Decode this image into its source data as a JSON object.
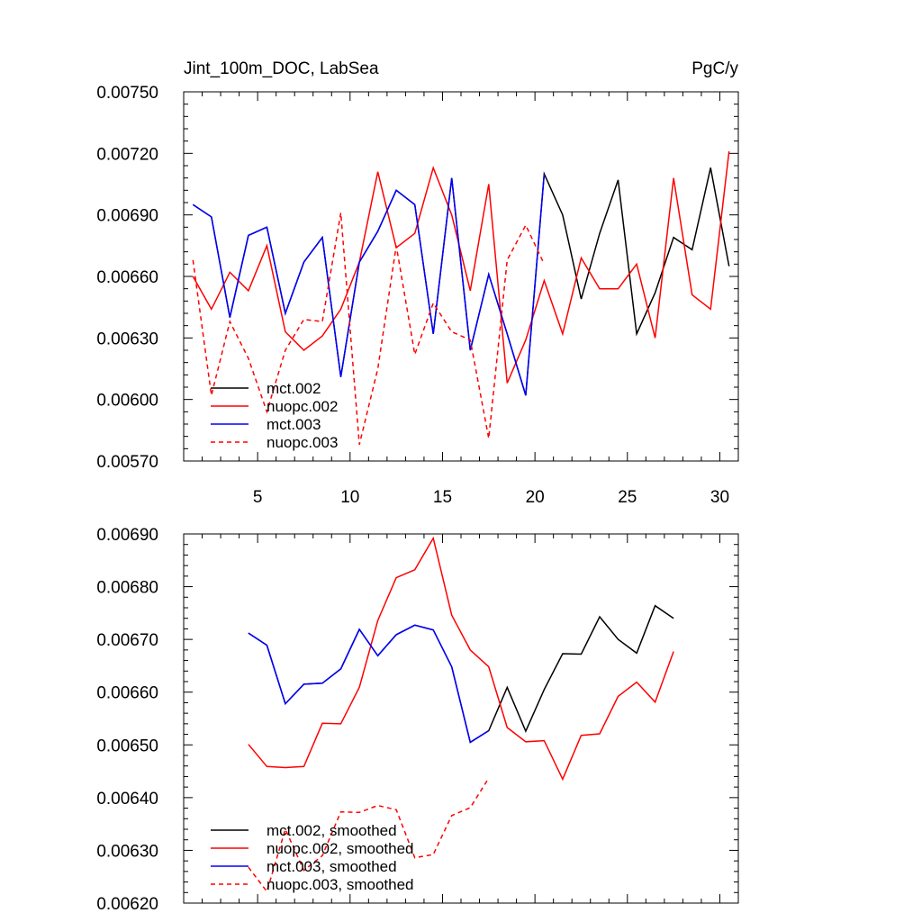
{
  "figure": {
    "title_left": "Jint_100m_DOC, LabSea",
    "title_right": "PgC/y"
  },
  "chart_data": [
    {
      "type": "line",
      "title": "Jint_100m_DOC, LabSea",
      "units": "PgC/y",
      "xlabel": "",
      "ylabel": "",
      "xlim": [
        1,
        31
      ],
      "ylim": [
        0.0057,
        0.0075
      ],
      "x_ticks": [
        5,
        10,
        15,
        20,
        25,
        30
      ],
      "x_tick_labels": [
        "5",
        "10",
        "15",
        "20",
        "25",
        "30"
      ],
      "y_ticks": [
        0.0057,
        0.006,
        0.0063,
        0.0066,
        0.0069,
        0.0072,
        0.0075
      ],
      "y_tick_labels": [
        "0.00570",
        "0.00600",
        "0.00630",
        "0.00660",
        "0.00690",
        "0.00720",
        "0.00750"
      ],
      "legend_position": "bottom-left",
      "series": [
        {
          "name": "mct.002",
          "color": "#000000",
          "dash": "solid",
          "x": [
            1.5,
            2.5,
            3.5,
            4.5,
            5.5,
            6.5,
            7.5,
            8.5,
            9.5,
            10.5,
            11.5,
            12.5,
            13.5,
            14.5,
            15.5,
            16.5,
            17.5,
            18.5,
            19.5,
            20.5,
            21.5,
            22.5,
            23.5,
            24.5,
            25.5,
            26.5,
            27.5,
            28.5,
            29.5,
            30.5
          ],
          "values": [
            0.00695,
            0.00689,
            0.0064,
            0.0068,
            0.00684,
            0.00642,
            0.00667,
            0.00679,
            0.00611,
            0.00667,
            0.00682,
            0.00702,
            0.00695,
            0.00632,
            0.00708,
            0.00624,
            0.00661,
            0.00632,
            0.00602,
            0.0071,
            0.0069,
            0.00649,
            0.00681,
            0.00707,
            0.00632,
            0.00652,
            0.00679,
            0.00673,
            0.00713,
            0.00665
          ]
        },
        {
          "name": "nuopc.002",
          "color": "#ff0000",
          "dash": "solid",
          "x": [
            1.5,
            2.5,
            3.5,
            4.5,
            5.5,
            6.5,
            7.5,
            8.5,
            9.5,
            10.5,
            11.5,
            12.5,
            13.5,
            14.5,
            15.5,
            16.5,
            17.5,
            18.5,
            19.5,
            20.5,
            21.5,
            22.5,
            23.5,
            24.5,
            25.5,
            26.5,
            27.5,
            28.5,
            29.5,
            30.5
          ],
          "values": [
            0.0066,
            0.00644,
            0.00662,
            0.00653,
            0.00675,
            0.00633,
            0.00624,
            0.00631,
            0.00644,
            0.00667,
            0.00711,
            0.00674,
            0.00681,
            0.00713,
            0.0069,
            0.00653,
            0.00705,
            0.00608,
            0.00629,
            0.00658,
            0.00632,
            0.00669,
            0.00654,
            0.00654,
            0.00666,
            0.0063,
            0.00708,
            0.00651,
            0.00644,
            0.00721
          ]
        },
        {
          "name": "mct.003",
          "color": "#0000ff",
          "dash": "solid",
          "x": [
            1.5,
            2.5,
            3.5,
            4.5,
            5.5,
            6.5,
            7.5,
            8.5,
            9.5,
            10.5,
            11.5,
            12.5,
            13.5,
            14.5,
            15.5,
            16.5,
            17.5,
            18.5,
            19.5,
            20.5
          ],
          "values": [
            0.00695,
            0.00689,
            0.0064,
            0.0068,
            0.00684,
            0.00642,
            0.00667,
            0.00679,
            0.00611,
            0.00667,
            0.00682,
            0.00702,
            0.00695,
            0.00632,
            0.00708,
            0.00624,
            0.00661,
            0.00632,
            0.00602,
            0.0071
          ]
        },
        {
          "name": "nuopc.003",
          "color": "#ff0000",
          "dash": "dashed",
          "x": [
            1.5,
            2.5,
            3.5,
            4.5,
            5.5,
            6.5,
            7.5,
            8.5,
            9.5,
            10.5,
            11.5,
            12.5,
            13.5,
            14.5,
            15.5,
            16.5,
            17.5,
            18.5,
            19.5,
            20.5
          ],
          "values": [
            0.00668,
            0.00602,
            0.00638,
            0.0062,
            0.00594,
            0.00624,
            0.00639,
            0.00638,
            0.00691,
            0.00578,
            0.00615,
            0.00675,
            0.00622,
            0.00647,
            0.00633,
            0.00629,
            0.00581,
            0.00668,
            0.00685,
            0.00666
          ]
        }
      ]
    },
    {
      "type": "line",
      "title": "",
      "xlabel": "",
      "ylabel": "",
      "xlim": [
        1,
        31
      ],
      "ylim": [
        0.0062,
        0.0069
      ],
      "x_ticks": [
        5,
        10,
        15,
        20,
        25,
        30
      ],
      "x_tick_labels": [],
      "y_ticks": [
        0.0062,
        0.0063,
        0.0064,
        0.0065,
        0.0066,
        0.0067,
        0.0068,
        0.0069
      ],
      "y_tick_labels": [
        "0.00620",
        "0.00630",
        "0.00640",
        "0.00650",
        "0.00660",
        "0.00670",
        "0.00680",
        "0.00690"
      ],
      "legend_position": "bottom-left",
      "series": [
        {
          "name": "mct.002, smoothed",
          "color": "#000000",
          "dash": "solid",
          "x": [
            4.5,
            5.5,
            6.5,
            7.5,
            8.5,
            9.5,
            10.5,
            11.5,
            12.5,
            13.5,
            14.5,
            15.5,
            16.5,
            17.5,
            18.5,
            19.5,
            20.5,
            21.5,
            22.5,
            23.5,
            24.5,
            25.5,
            26.5,
            27.5
          ],
          "values": [
            0.006712,
            0.006689,
            0.006578,
            0.006615,
            0.006617,
            0.006644,
            0.006719,
            0.006669,
            0.006709,
            0.006727,
            0.006718,
            0.006648,
            0.006505,
            0.006527,
            0.006609,
            0.006526,
            0.006605,
            0.006673,
            0.006672,
            0.006743,
            0.0067,
            0.006674,
            0.006764,
            0.00674
          ]
        },
        {
          "name": "nuopc.002, smoothed",
          "color": "#ff0000",
          "dash": "solid",
          "x": [
            4.5,
            5.5,
            6.5,
            7.5,
            8.5,
            9.5,
            10.5,
            11.5,
            12.5,
            13.5,
            14.5,
            15.5,
            16.5,
            17.5,
            18.5,
            19.5,
            20.5,
            21.5,
            22.5,
            23.5,
            24.5,
            25.5,
            26.5,
            27.5
          ],
          "values": [
            0.006501,
            0.006459,
            0.006457,
            0.006459,
            0.006541,
            0.00654,
            0.006609,
            0.006736,
            0.006817,
            0.006832,
            0.006892,
            0.006746,
            0.00668,
            0.006648,
            0.006533,
            0.006506,
            0.006508,
            0.006435,
            0.006518,
            0.006521,
            0.006592,
            0.006619,
            0.006581,
            0.006677
          ]
        },
        {
          "name": "mct.003, smoothed",
          "color": "#0000ff",
          "dash": "solid",
          "x": [
            4.5,
            5.5,
            6.5,
            7.5,
            8.5,
            9.5,
            10.5,
            11.5,
            12.5,
            13.5,
            14.5,
            15.5,
            16.5,
            17.5
          ],
          "values": [
            0.006712,
            0.006689,
            0.006578,
            0.006615,
            0.006617,
            0.006644,
            0.006719,
            0.006669,
            0.006709,
            0.006727,
            0.006718,
            0.006648,
            0.006505,
            0.006527
          ]
        },
        {
          "name": "nuopc.003, smoothed",
          "color": "#ff0000",
          "dash": "dashed",
          "x": [
            4.5,
            5.5,
            6.5,
            7.5,
            8.5,
            9.5,
            10.5,
            11.5,
            12.5,
            13.5,
            14.5,
            15.5,
            16.5,
            17.5
          ],
          "values": [
            0.006268,
            0.006222,
            0.00634,
            0.006262,
            0.00629,
            0.006373,
            0.006372,
            0.006385,
            0.006377,
            0.006286,
            0.006292,
            0.006366,
            0.006381,
            0.006437
          ]
        }
      ]
    }
  ]
}
